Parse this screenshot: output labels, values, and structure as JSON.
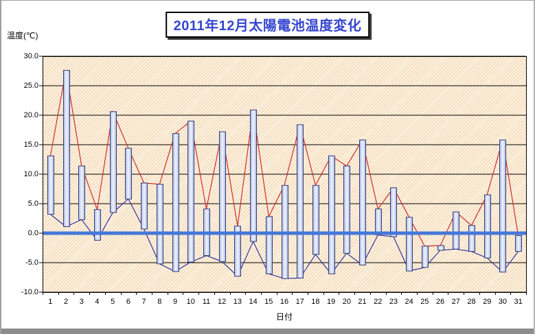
{
  "window": {
    "background": "#ffffff",
    "frame_color": "#a0a0a0",
    "bottom_bar_color": "#8d8d8d"
  },
  "title": {
    "text": "2011年12月太陽電池温度変化",
    "color": "#3546cf",
    "border_color": "#000000",
    "shadow_color": "#3a3a3a",
    "background": "#ffffff"
  },
  "y_axis": {
    "title": "温度(℃)",
    "tick_labels": [
      "30.0",
      "25.0",
      "20.0",
      "15.0",
      "10.0",
      "5.0",
      "0.0",
      "-5.0",
      "-10.0"
    ]
  },
  "x_axis": {
    "title": "日付",
    "labels": [
      "1",
      "2",
      "3",
      "4",
      "5",
      "6",
      "7",
      "8",
      "9",
      "10",
      "11",
      "12",
      "13",
      "14",
      "15",
      "16",
      "17",
      "18",
      "19",
      "20",
      "21",
      "22",
      "23",
      "24",
      "25",
      "26",
      "27",
      "28",
      "29",
      "30",
      "31"
    ]
  },
  "chart_data": {
    "type": "bar",
    "subtype": "daily-min-max-floating-bars-with-min-max-lines",
    "title": "2011年12月太陽電池温度変化",
    "xlabel": "日付",
    "ylabel": "温度(℃)",
    "ylim": [
      -10,
      30
    ],
    "ytick_step": 5,
    "grid": true,
    "legend": false,
    "categories": [
      1,
      2,
      3,
      4,
      5,
      6,
      7,
      8,
      9,
      10,
      11,
      12,
      13,
      14,
      15,
      16,
      17,
      18,
      19,
      20,
      21,
      22,
      23,
      24,
      25,
      26,
      27,
      28,
      29,
      30,
      31
    ],
    "series": [
      {
        "name": "daily-max",
        "style": "red line through bar tops",
        "color": "#cc2d2d",
        "values": [
          13.1,
          27.6,
          11.4,
          4.0,
          20.6,
          14.4,
          8.5,
          8.3,
          16.9,
          19.0,
          4.1,
          17.2,
          1.2,
          20.9,
          2.8,
          8.1,
          18.4,
          8.1,
          13.1,
          11.4,
          15.8,
          4.1,
          7.7,
          2.7,
          -2.2,
          -2.1,
          3.6,
          1.3,
          6.5,
          15.8,
          -0.4
        ]
      },
      {
        "name": "daily-min",
        "style": "navy line through bar bottoms",
        "color": "#3232a0",
        "values": [
          3.2,
          1.1,
          2.3,
          -1.2,
          3.5,
          5.8,
          0.7,
          -5.2,
          -6.5,
          -4.9,
          -3.8,
          -4.8,
          -7.3,
          -1.4,
          -6.9,
          -7.7,
          -7.6,
          -3.6,
          -6.9,
          -3.4,
          -5.4,
          -0.3,
          -0.6,
          -6.4,
          -5.8,
          -2.9,
          -2.7,
          -3.1,
          -4.2,
          -6.6,
          -3.1
        ]
      }
    ],
    "zero_line": {
      "value": 0,
      "color": "#4577d8",
      "width": 5
    },
    "bar_style": {
      "fill_edge": "#a8b6e0",
      "fill_center": "#f2f5fe",
      "border": "#333d7a",
      "width": 9
    },
    "plot_background": {
      "base": "#fcf3e3",
      "hatch": "#f3cfa6"
    },
    "gridline_color": "#000000"
  }
}
